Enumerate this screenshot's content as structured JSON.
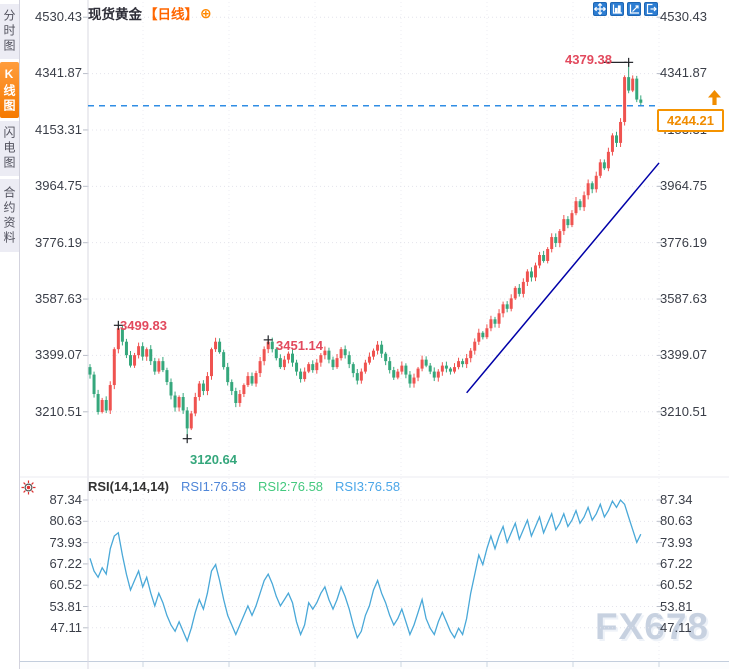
{
  "watermark": "FX678",
  "header": {
    "title": "现货黄金",
    "period": "【日线】",
    "add_icon": "⊕"
  },
  "sidebar": {
    "tabs": [
      {
        "label": "分时图",
        "active": false
      },
      {
        "label": "K线图",
        "active": true
      },
      {
        "label": "闪电图",
        "active": false
      },
      {
        "label": "合约资料",
        "active": false
      }
    ]
  },
  "toolbar": {
    "icons": [
      "crosshair-move",
      "axis-zoom",
      "axis-trend",
      "exit-restore"
    ]
  },
  "colors": {
    "up_candle": "#ef5350",
    "down_candle": "#35a77c",
    "rsi_line": "#49a8d8",
    "accent_orange": "#f59300",
    "annotation_red": "#e2495d",
    "annotation_green": "#35a77c",
    "trendline": "#0000a8",
    "current_line": "#2f8de4",
    "icon_blue": "#2d7dd2"
  },
  "main_chart": {
    "y_axis": [
      "4530.43",
      "4341.87",
      "4153.31",
      "3964.75",
      "3776.19",
      "3587.63",
      "3399.07",
      "3210.51"
    ],
    "current_price": "4244.21"
  },
  "rsi_panel": {
    "label": "RSI(14,14,14)",
    "series_labels": [
      {
        "text": "RSI1:76.58",
        "color": "#4f86d8"
      },
      {
        "text": "RSI2:76.58",
        "color": "#44c97f"
      },
      {
        "text": "RSI3:76.58",
        "color": "#4aa6e8"
      }
    ],
    "y_axis": [
      "87.34",
      "80.63",
      "73.93",
      "67.22",
      "60.52",
      "53.81",
      "47.11"
    ]
  },
  "chart_data": [
    {
      "type": "candlestick",
      "title": "现货黄金 日线",
      "ylim": [
        3210.51,
        4530.43
      ],
      "y_ticks": [
        4530.43,
        4341.87,
        4153.31,
        3964.75,
        3776.19,
        3587.63,
        3399.07,
        3210.51
      ],
      "first_open": 3360,
      "open_rule": "previous_close",
      "closes": [
        3335,
        3270,
        3210,
        3250,
        3215,
        3300,
        3420,
        3490,
        3445,
        3400,
        3365,
        3400,
        3430,
        3395,
        3420,
        3380,
        3345,
        3380,
        3350,
        3310,
        3265,
        3225,
        3260,
        3215,
        3155,
        3205,
        3260,
        3305,
        3280,
        3330,
        3420,
        3445,
        3410,
        3360,
        3310,
        3280,
        3240,
        3270,
        3300,
        3330,
        3305,
        3340,
        3380,
        3420,
        3445,
        3420,
        3390,
        3360,
        3385,
        3405,
        3375,
        3345,
        3320,
        3345,
        3370,
        3350,
        3375,
        3400,
        3415,
        3385,
        3360,
        3390,
        3420,
        3400,
        3370,
        3340,
        3315,
        3345,
        3375,
        3395,
        3415,
        3435,
        3405,
        3380,
        3350,
        3325,
        3345,
        3365,
        3335,
        3305,
        3325,
        3355,
        3385,
        3365,
        3345,
        3325,
        3345,
        3365,
        3355,
        3345,
        3360,
        3380,
        3370,
        3390,
        3415,
        3445,
        3475,
        3460,
        3490,
        3520,
        3505,
        3540,
        3570,
        3555,
        3590,
        3625,
        3605,
        3645,
        3680,
        3660,
        3700,
        3735,
        3715,
        3755,
        3795,
        3775,
        3815,
        3855,
        3835,
        3875,
        3915,
        3895,
        3935,
        3975,
        3955,
        4000,
        4045,
        4025,
        4080,
        4135,
        4110,
        4180,
        4330,
        4285,
        4325,
        4255,
        4244.21
      ],
      "special_wicks": {
        "7": {
          "high": 3499.83
        },
        "24": {
          "low": 3120.64
        },
        "44": {
          "high": 3451.14
        },
        "133": {
          "high": 4379.38
        }
      },
      "annotations": [
        {
          "text": "3499.83",
          "index": 7,
          "price": 3499.83,
          "color": "#e2495d",
          "leader": false
        },
        {
          "text": "3451.14",
          "index": 44,
          "price": 3451.14,
          "color": "#e2495d",
          "leader": false
        },
        {
          "text": "3120.64",
          "index": 24,
          "price": 3120.64,
          "color": "#35a77c",
          "leader": false
        },
        {
          "text": "4379.38",
          "index": 133,
          "price": 4379.38,
          "color": "#e2495d",
          "leader": true
        }
      ],
      "trendline": {
        "from_index": 93,
        "from_price": 3274,
        "to_index": 140.5,
        "to_price": 4043
      },
      "current_price_line": 4244.21,
      "last_price": 4244.21
    },
    {
      "type": "line",
      "title": "RSI(14,14,14)",
      "ylim": [
        40,
        90
      ],
      "y_ticks": [
        87.34,
        80.63,
        73.93,
        67.22,
        60.52,
        53.81,
        47.11
      ],
      "current": 76.58,
      "values": [
        69,
        65,
        63,
        66,
        64,
        72,
        76,
        77,
        70,
        64,
        59,
        62,
        65,
        60,
        63,
        58,
        54,
        58,
        55,
        51,
        48,
        46,
        49,
        46,
        43,
        47,
        52,
        56,
        53,
        58,
        65,
        67,
        62,
        56,
        51,
        48,
        45,
        48,
        51,
        54,
        51,
        54,
        58,
        62,
        64,
        61,
        57,
        54,
        56,
        58,
        55,
        49,
        45,
        48,
        55,
        53,
        55,
        58,
        60,
        56,
        53,
        56,
        60,
        57,
        53,
        48,
        44,
        46,
        51,
        54,
        59,
        62,
        58,
        55,
        51,
        48,
        50,
        53,
        49,
        45,
        48,
        52,
        56,
        50,
        47,
        45,
        49,
        52,
        49,
        46,
        44,
        47,
        45,
        50,
        58,
        64,
        70,
        67,
        72,
        76,
        72,
        76,
        79,
        74,
        77,
        80,
        75,
        78,
        81,
        76,
        79,
        82,
        77,
        80,
        83,
        78,
        80,
        83,
        79,
        81,
        84,
        80,
        82,
        85,
        81,
        83,
        86,
        82,
        84,
        87,
        85,
        87.3,
        86,
        82,
        78,
        74,
        76.58
      ]
    }
  ]
}
